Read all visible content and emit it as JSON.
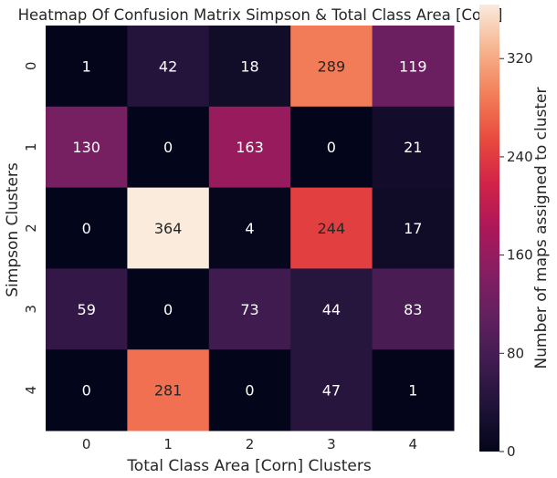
{
  "chart_data": {
    "type": "heatmap",
    "title": "Heatmap Of Confusion Matrix Simpson & Total Class Area [Corn]",
    "xlabel": "Total Class Area [Corn] Clusters",
    "ylabel": "Simpson Clusters",
    "x_categories": [
      "0",
      "1",
      "2",
      "3",
      "4"
    ],
    "y_categories": [
      "0",
      "1",
      "2",
      "3",
      "4"
    ],
    "values": [
      [
        1,
        42,
        18,
        289,
        119
      ],
      [
        130,
        0,
        163,
        0,
        21
      ],
      [
        0,
        364,
        4,
        244,
        17
      ],
      [
        59,
        0,
        73,
        44,
        83
      ],
      [
        0,
        281,
        0,
        47,
        1
      ]
    ],
    "colorbar": {
      "label": "Number of maps assigned to cluster",
      "range": [
        0,
        364
      ],
      "ticks": [
        0,
        80,
        160,
        240,
        320
      ],
      "colormap": "rocket"
    }
  }
}
